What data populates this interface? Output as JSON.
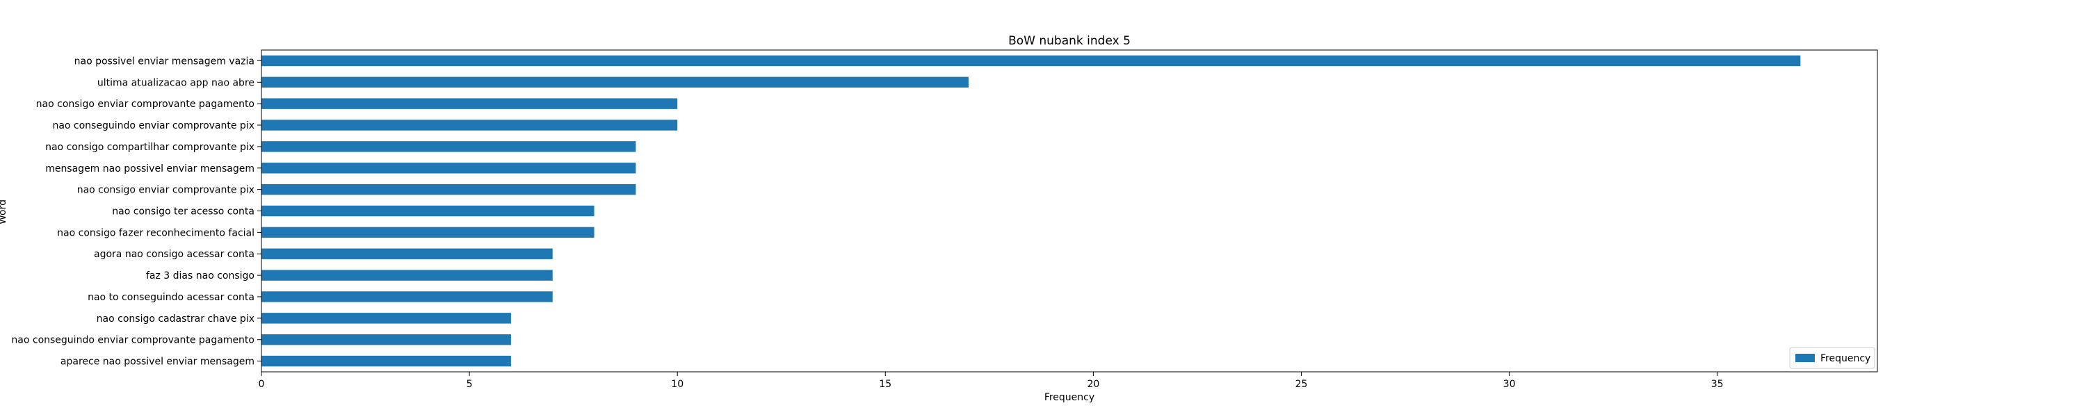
{
  "chart_data": {
    "type": "bar",
    "orientation": "horizontal",
    "title": "BoW nubank index 5",
    "xlabel": "Frequency",
    "ylabel": "Word",
    "xlim": [
      0,
      38.85
    ],
    "xticks": [
      0,
      5,
      10,
      15,
      20,
      25,
      30,
      35
    ],
    "grid": false,
    "legend_position": "lower-right",
    "bar_color": "#1f77b4",
    "categories": [
      "nao possivel enviar mensagem vazia",
      "ultima atualizacao app nao abre",
      "nao consigo enviar comprovante pagamento",
      "nao conseguindo enviar comprovante pix",
      "nao consigo compartilhar comprovante pix",
      "mensagem nao possivel enviar mensagem",
      "nao consigo enviar comprovante pix",
      "nao consigo ter acesso conta",
      "nao consigo fazer reconhecimento facial",
      "agora nao consigo acessar conta",
      "faz 3 dias nao consigo",
      "nao to conseguindo acessar conta",
      "nao consigo cadastrar chave pix",
      "nao conseguindo enviar comprovante pagamento",
      "aparece nao possivel enviar mensagem"
    ],
    "series": [
      {
        "name": "Frequency",
        "values": [
          37,
          17,
          10,
          10,
          9,
          9,
          9,
          8,
          8,
          7,
          7,
          7,
          6,
          6,
          6
        ]
      }
    ]
  }
}
